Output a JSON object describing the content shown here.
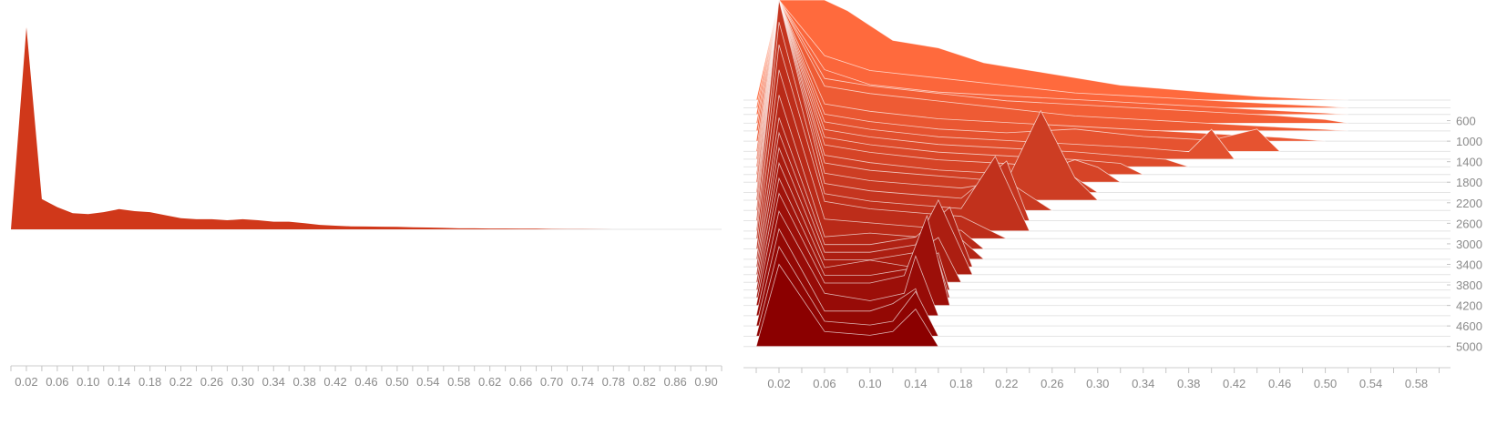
{
  "chart_data": [
    {
      "type": "area",
      "title": "",
      "xlabel": "",
      "ylabel": "",
      "xlim": [
        0.0,
        0.92
      ],
      "x_ticks": [
        "0.02",
        "0.06",
        "0.10",
        "0.14",
        "0.18",
        "0.22",
        "0.26",
        "0.30",
        "0.34",
        "0.38",
        "0.42",
        "0.46",
        "0.50",
        "0.54",
        "0.58",
        "0.62",
        "0.66",
        "0.70",
        "0.74",
        "0.78",
        "0.82",
        "0.86",
        "0.90"
      ],
      "grid": false,
      "legend": "none",
      "color": "#d0381a",
      "series": [
        {
          "x": [
            0.0,
            0.02,
            0.04,
            0.06,
            0.08,
            0.1,
            0.12,
            0.14,
            0.16,
            0.18,
            0.2,
            0.22,
            0.24,
            0.26,
            0.28,
            0.3,
            0.32,
            0.34,
            0.36,
            0.38,
            0.4,
            0.42,
            0.44,
            0.46,
            0.48,
            0.5,
            0.52,
            0.54,
            0.56,
            0.58,
            0.6,
            0.62,
            0.64,
            0.66,
            0.68,
            0.7,
            0.72,
            0.74,
            0.76,
            0.78,
            0.8,
            0.82,
            0.84,
            0.86,
            0.88,
            0.9
          ],
          "values": [
            0,
            100,
            15,
            11,
            8,
            7.5,
            8.5,
            10,
            9,
            8.5,
            7,
            5.5,
            5,
            5,
            4.5,
            5,
            4.5,
            3.8,
            3.8,
            3,
            2.2,
            1.8,
            1.5,
            1.4,
            1.3,
            1.2,
            1,
            0.9,
            0.7,
            0.5,
            0.5,
            0.4,
            0.4,
            0.3,
            0.3,
            0.2,
            0.15,
            0.1,
            0.05,
            0.02,
            0.01,
            0,
            0,
            0,
            0,
            0
          ]
        }
      ]
    },
    {
      "type": "area",
      "title": "",
      "xlabel": "",
      "ylabel": "",
      "xlim": [
        0.0,
        0.61
      ],
      "x_ticks": [
        "0.02",
        "0.06",
        "0.10",
        "0.14",
        "0.18",
        "0.22",
        "0.26",
        "0.30",
        "0.34",
        "0.38",
        "0.42",
        "0.46",
        "0.50",
        "0.54",
        "0.58"
      ],
      "y_ticks": [
        "600",
        "1000",
        "1400",
        "1800",
        "2200",
        "2600",
        "3000",
        "3400",
        "3800",
        "4200",
        "4600",
        "5000"
      ],
      "ylim": [
        200,
        5200
      ],
      "y_position": "right",
      "grid": true,
      "legend": "none",
      "color_range": [
        "#ff6a3d",
        "#8b0000"
      ],
      "series": [
        {
          "offset": 200,
          "x": [
            0.0,
            0.02,
            0.04,
            0.06,
            0.08,
            0.1,
            0.12,
            0.16,
            0.2,
            0.24,
            0.28,
            0.32,
            0.36,
            0.4,
            0.44,
            0.48,
            0.52
          ],
          "values": [
            0,
            110,
            16,
            14,
            12,
            10,
            8,
            7,
            5,
            4,
            3,
            2,
            1.5,
            1,
            0.5,
            0.2,
            0
          ]
        },
        {
          "offset": 350,
          "x": [
            0.0,
            0.02,
            0.06,
            0.1,
            0.16,
            0.22,
            0.28,
            0.34,
            0.4,
            0.46,
            0.5,
            0.52
          ],
          "values": [
            0,
            60,
            7,
            5,
            4,
            3,
            2,
            1.5,
            1,
            0.5,
            0.2,
            0
          ]
        },
        {
          "offset": 480,
          "x": [
            0.0,
            0.02,
            0.06,
            0.1,
            0.16,
            0.22,
            0.28,
            0.34,
            0.4,
            0.46,
            0.5,
            0.52
          ],
          "values": [
            0,
            55,
            6,
            4,
            3,
            2.5,
            2,
            1.5,
            1,
            0.5,
            0.2,
            0
          ]
        },
        {
          "offset": 650,
          "x": [
            0.0,
            0.02,
            0.06,
            0.1,
            0.16,
            0.22,
            0.28,
            0.34,
            0.4,
            0.46,
            0.5,
            0.52
          ],
          "values": [
            0,
            50,
            6,
            5,
            4,
            3,
            2.5,
            2,
            1.5,
            1,
            0.5,
            0
          ]
        },
        {
          "offset": 800,
          "x": [
            0.0,
            0.02,
            0.06,
            0.1,
            0.16,
            0.22,
            0.28,
            0.34,
            0.4,
            0.46,
            0.5,
            0.52
          ],
          "values": [
            0,
            50,
            6,
            5,
            4,
            3,
            2,
            1.5,
            1,
            0.5,
            0.2,
            0
          ]
        },
        {
          "offset": 1000,
          "x": [
            0.0,
            0.02,
            0.06,
            0.1,
            0.16,
            0.22,
            0.28,
            0.34,
            0.4,
            0.46,
            0.5
          ],
          "values": [
            0,
            48,
            5,
            4,
            3,
            2.5,
            2,
            1.5,
            1,
            0.5,
            0
          ]
        },
        {
          "offset": 1200,
          "x": [
            0.0,
            0.02,
            0.06,
            0.1,
            0.16,
            0.22,
            0.28,
            0.34,
            0.4,
            0.44,
            0.46
          ],
          "values": [
            0,
            46,
            5,
            4,
            3,
            2.5,
            3,
            2,
            1.5,
            3,
            0
          ]
        },
        {
          "offset": 1350,
          "x": [
            0.0,
            0.02,
            0.06,
            0.1,
            0.16,
            0.22,
            0.28,
            0.34,
            0.38,
            0.4,
            0.42
          ],
          "values": [
            0,
            44,
            5,
            4,
            3,
            2.5,
            2,
            1.5,
            1,
            4,
            0
          ]
        },
        {
          "offset": 1500,
          "x": [
            0.0,
            0.02,
            0.06,
            0.1,
            0.16,
            0.22,
            0.28,
            0.32,
            0.36,
            0.38
          ],
          "values": [
            0,
            42,
            5,
            4,
            3,
            2.5,
            2,
            1.5,
            1,
            0
          ]
        },
        {
          "offset": 1650,
          "x": [
            0.0,
            0.02,
            0.06,
            0.1,
            0.16,
            0.22,
            0.28,
            0.32,
            0.34
          ],
          "values": [
            0,
            40,
            5,
            4,
            3,
            2.5,
            2,
            1.5,
            0
          ]
        },
        {
          "offset": 1800,
          "x": [
            0.0,
            0.02,
            0.06,
            0.1,
            0.16,
            0.22,
            0.26,
            0.28,
            0.3,
            0.32
          ],
          "values": [
            0,
            38,
            5,
            4,
            3,
            2.5,
            2,
            3,
            2,
            0
          ]
        },
        {
          "offset": 2000,
          "x": [
            0.0,
            0.02,
            0.06,
            0.1,
            0.16,
            0.22,
            0.28,
            0.3
          ],
          "values": [
            0,
            36,
            5,
            4,
            3,
            2.5,
            2,
            0
          ]
        },
        {
          "offset": 2150,
          "x": [
            0.0,
            0.02,
            0.06,
            0.1,
            0.14,
            0.18,
            0.22,
            0.25,
            0.28,
            0.3
          ],
          "values": [
            0,
            34,
            5,
            4,
            3.5,
            3,
            2.5,
            12,
            3,
            0
          ]
        },
        {
          "offset": 2350,
          "x": [
            0.0,
            0.02,
            0.06,
            0.1,
            0.14,
            0.18,
            0.22,
            0.24,
            0.26
          ],
          "values": [
            0,
            32,
            5,
            4,
            3.5,
            3,
            4,
            2,
            0
          ]
        },
        {
          "offset": 2550,
          "x": [
            0.0,
            0.02,
            0.06,
            0.1,
            0.14,
            0.18,
            0.22,
            0.24
          ],
          "values": [
            0,
            30,
            5,
            4,
            3.5,
            3,
            8,
            0
          ]
        },
        {
          "offset": 2750,
          "x": [
            0.0,
            0.02,
            0.06,
            0.1,
            0.14,
            0.18,
            0.21,
            0.24
          ],
          "values": [
            0,
            28,
            5,
            4,
            3.5,
            3,
            10,
            0
          ]
        },
        {
          "offset": 2900,
          "x": [
            0.0,
            0.02,
            0.06,
            0.1,
            0.14,
            0.18,
            0.22
          ],
          "values": [
            0,
            26,
            5,
            4,
            3.5,
            3,
            0
          ]
        },
        {
          "offset": 3100,
          "x": [
            0.0,
            0.02,
            0.06,
            0.1,
            0.14,
            0.18,
            0.2
          ],
          "values": [
            0,
            24,
            4,
            3.5,
            3,
            2.5,
            0
          ]
        },
        {
          "offset": 3300,
          "x": [
            0.0,
            0.02,
            0.06,
            0.1,
            0.14,
            0.17,
            0.2
          ],
          "values": [
            0,
            22,
            3,
            3.5,
            3,
            4,
            0
          ]
        },
        {
          "offset": 3450,
          "x": [
            0.0,
            0.02,
            0.06,
            0.1,
            0.14,
            0.17,
            0.19
          ],
          "values": [
            0,
            20,
            3,
            3,
            4,
            8,
            0
          ]
        },
        {
          "offset": 3600,
          "x": [
            0.0,
            0.02,
            0.06,
            0.1,
            0.14,
            0.16,
            0.19
          ],
          "values": [
            0,
            19,
            3,
            3,
            4,
            10,
            0
          ]
        },
        {
          "offset": 3750,
          "x": [
            0.0,
            0.02,
            0.06,
            0.1,
            0.14,
            0.16,
            0.18
          ],
          "values": [
            0,
            18,
            3,
            3,
            4,
            6,
            0
          ]
        },
        {
          "offset": 3900,
          "x": [
            0.0,
            0.02,
            0.06,
            0.1,
            0.14,
            0.16,
            0.17
          ],
          "values": [
            0,
            17,
            3,
            4,
            3,
            5,
            0
          ]
        },
        {
          "offset": 4050,
          "x": [
            0.0,
            0.02,
            0.06,
            0.1,
            0.14,
            0.16,
            0.17
          ],
          "values": [
            0,
            16,
            3,
            3,
            4,
            5,
            0
          ]
        },
        {
          "offset": 4200,
          "x": [
            0.0,
            0.02,
            0.06,
            0.1,
            0.13,
            0.15,
            0.17
          ],
          "values": [
            0,
            15,
            3,
            3,
            4,
            12,
            0
          ]
        },
        {
          "offset": 4400,
          "x": [
            0.0,
            0.02,
            0.06,
            0.1,
            0.13,
            0.14,
            0.16
          ],
          "values": [
            0,
            14,
            3,
            2,
            3,
            8,
            0
          ]
        },
        {
          "offset": 4600,
          "x": [
            0.0,
            0.02,
            0.06,
            0.1,
            0.12,
            0.14,
            0.15
          ],
          "values": [
            0,
            13,
            2,
            2,
            3,
            5,
            0
          ]
        },
        {
          "offset": 4800,
          "x": [
            0.0,
            0.02,
            0.06,
            0.1,
            0.12,
            0.14,
            0.16
          ],
          "values": [
            0,
            12,
            2,
            1.5,
            2,
            6,
            0
          ]
        },
        {
          "offset": 5000,
          "x": [
            0.0,
            0.02,
            0.06,
            0.1,
            0.12,
            0.14,
            0.16
          ],
          "values": [
            0,
            11,
            2,
            1.5,
            2,
            5,
            0
          ]
        }
      ]
    }
  ]
}
